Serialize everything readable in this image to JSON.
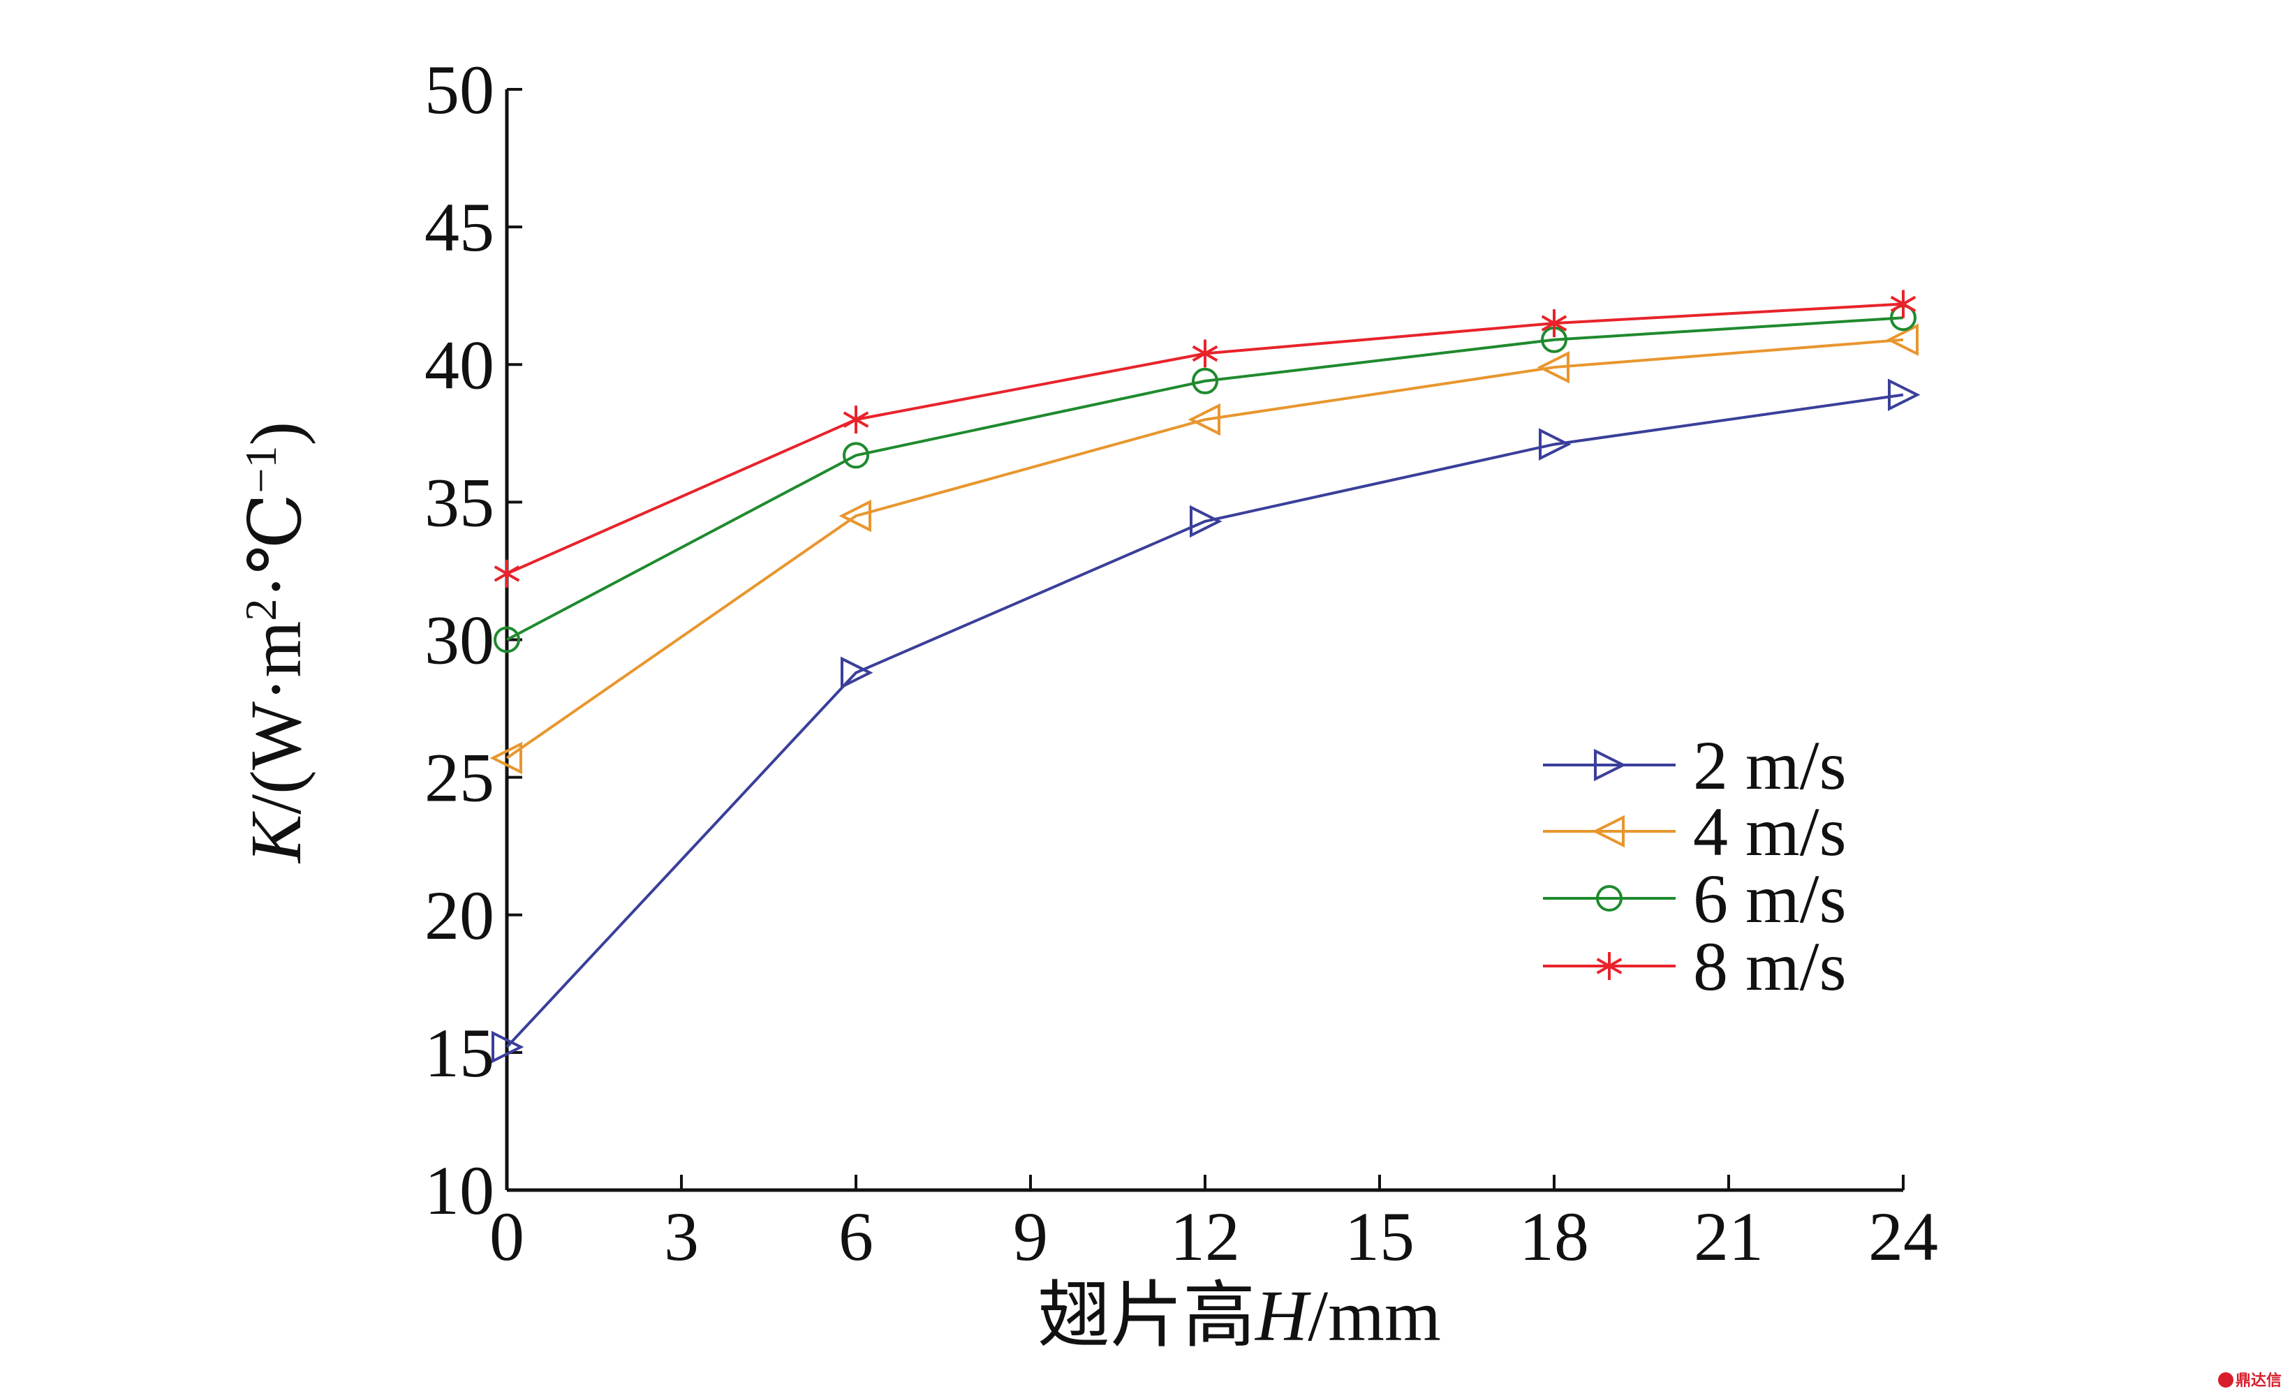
{
  "chart_data": {
    "type": "line",
    "x": [
      0,
      6,
      12,
      18,
      24
    ],
    "xticks": [
      "0",
      "3",
      "6",
      "9",
      "12",
      "15",
      "18",
      "21",
      "24"
    ],
    "yticks": [
      "10",
      "15",
      "20",
      "25",
      "30",
      "35",
      "40",
      "45",
      "50"
    ],
    "xlim": [
      0,
      24
    ],
    "ylim": [
      10,
      50
    ],
    "xlabel_prefix": "翅片高",
    "xlabel_var": "H",
    "xlabel_unit": "/mm",
    "ylabel_var": "K",
    "ylabel_unit": "/(W·m",
    "ylabel_sup1": "2",
    "ylabel_mid": "·℃",
    "ylabel_sup2": "−1",
    "ylabel_end": ")",
    "grid": false,
    "legend_position": "right-middle",
    "series": [
      {
        "name": "2 m/s",
        "values": [
          15.2,
          28.8,
          34.3,
          37.1,
          38.9
        ],
        "color": "#3a3f9a",
        "marker": "triangle-right"
      },
      {
        "name": "4 m/s",
        "values": [
          25.7,
          34.5,
          38.0,
          39.9,
          40.9
        ],
        "color": "#e8962e",
        "marker": "triangle-left"
      },
      {
        "name": "6 m/s",
        "values": [
          30.0,
          36.7,
          39.4,
          40.9,
          41.7
        ],
        "color": "#1f8a2e",
        "marker": "circle"
      },
      {
        "name": "8 m/s",
        "values": [
          32.4,
          38.0,
          40.4,
          41.5,
          42.2
        ],
        "color": "#e8232b",
        "marker": "asterisk"
      }
    ]
  },
  "watermark": {
    "text": "鼎达信",
    "logo_color": "#d81e2b"
  }
}
